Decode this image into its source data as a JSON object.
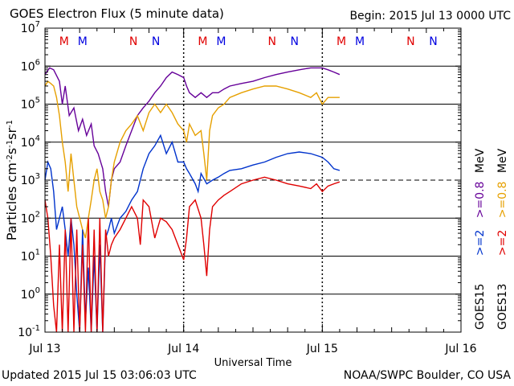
{
  "chart_data": {
    "type": "line",
    "title": "GOES Electron Flux (5 minute data)",
    "begin": "Begin: 2015 Jul 13 0000 UTC",
    "xlabel": "Universal Time",
    "ylabel": "Particles cm-2s-1sr-1",
    "x_unit": "hours since Jul 13 0000 UTC",
    "xlim": [
      0,
      72
    ],
    "ylim": [
      0.1,
      10000000
    ],
    "yscale": "log",
    "x_tick_labels": [
      {
        "x": 0,
        "label": "Jul 13"
      },
      {
        "x": 24,
        "label": "Jul 14"
      },
      {
        "x": 48,
        "label": "Jul 15"
      },
      {
        "x": 72,
        "label": "Jul 16"
      }
    ],
    "y_tick_exponents": [
      -1,
      0,
      1,
      2,
      3,
      4,
      5,
      6,
      7
    ],
    "threshold_line": 1000,
    "markers": [
      {
        "x": 3.3,
        "label": "M",
        "color": "#e00000"
      },
      {
        "x": 6.5,
        "label": "M",
        "color": "#0000e0"
      },
      {
        "x": 15.3,
        "label": "N",
        "color": "#e00000"
      },
      {
        "x": 19.2,
        "label": "N",
        "color": "#0000e0"
      },
      {
        "x": 27.3,
        "label": "M",
        "color": "#e00000"
      },
      {
        "x": 30.5,
        "label": "M",
        "color": "#0000e0"
      },
      {
        "x": 39.3,
        "label": "N",
        "color": "#e00000"
      },
      {
        "x": 43.2,
        "label": "N",
        "color": "#0000e0"
      },
      {
        "x": 51.3,
        "label": "M",
        "color": "#e00000"
      },
      {
        "x": 54.5,
        "label": "M",
        "color": "#0000e0"
      },
      {
        "x": 63.3,
        "label": "N",
        "color": "#e00000"
      },
      {
        "x": 67.2,
        "label": "N",
        "color": "#0000e0"
      }
    ],
    "legend": {
      "left": {
        "sat": "GOES15",
        "e2": ">=2",
        "e08": ">=0.8",
        "unit": "MeV"
      },
      "right": {
        "sat": "GOES13",
        "e2": ">=2",
        "e08": ">=0.8",
        "unit": "MeV"
      }
    },
    "series": [
      {
        "name": "GOES15 >=0.8 MeV",
        "color": "#660099",
        "points": [
          [
            0,
            600000
          ],
          [
            0.8,
            900000
          ],
          [
            1.5,
            800000
          ],
          [
            2.5,
            400000
          ],
          [
            3,
            100000
          ],
          [
            3.5,
            300000
          ],
          [
            4.2,
            50000
          ],
          [
            5,
            80000
          ],
          [
            5.8,
            20000
          ],
          [
            6.5,
            40000
          ],
          [
            7.2,
            15000
          ],
          [
            8,
            30000
          ],
          [
            8.5,
            8000
          ],
          [
            9.2,
            5000
          ],
          [
            10,
            2000
          ],
          [
            10.5,
            500
          ],
          [
            11,
            200
          ],
          [
            11.5,
            1000
          ],
          [
            12,
            2000
          ],
          [
            13,
            3000
          ],
          [
            14,
            8000
          ],
          [
            15,
            20000
          ],
          [
            16,
            50000
          ],
          [
            17,
            80000
          ],
          [
            18,
            120000
          ],
          [
            19,
            200000
          ],
          [
            20,
            300000
          ],
          [
            21,
            500000
          ],
          [
            22,
            700000
          ],
          [
            23,
            600000
          ],
          [
            24,
            500000
          ],
          [
            24.5,
            300000
          ],
          [
            25,
            200000
          ],
          [
            26,
            150000
          ],
          [
            27,
            200000
          ],
          [
            28,
            150000
          ],
          [
            29,
            200000
          ],
          [
            30,
            200000
          ],
          [
            31,
            250000
          ],
          [
            32,
            300000
          ],
          [
            34,
            350000
          ],
          [
            36,
            400000
          ],
          [
            38,
            500000
          ],
          [
            40,
            600000
          ],
          [
            42,
            700000
          ],
          [
            44,
            800000
          ],
          [
            46,
            900000
          ],
          [
            48,
            900000
          ],
          [
            49,
            800000
          ],
          [
            50,
            700000
          ],
          [
            51,
            600000
          ]
        ]
      },
      {
        "name": "GOES13 >=0.8 MeV",
        "color": "#e6a000",
        "points": [
          [
            0,
            300000
          ],
          [
            0.5,
            400000
          ],
          [
            1,
            350000
          ],
          [
            1.5,
            300000
          ],
          [
            2,
            150000
          ],
          [
            2.5,
            50000
          ],
          [
            3,
            10000
          ],
          [
            3.5,
            3000
          ],
          [
            4,
            500
          ],
          [
            4.5,
            5000
          ],
          [
            5,
            1000
          ],
          [
            5.5,
            200
          ],
          [
            6,
            100
          ],
          [
            6.5,
            50
          ],
          [
            7,
            30
          ],
          [
            7.5,
            100
          ],
          [
            8,
            300
          ],
          [
            8.5,
            1000
          ],
          [
            9,
            2000
          ],
          [
            9.5,
            500
          ],
          [
            10,
            300
          ],
          [
            10.5,
            100
          ],
          [
            11,
            200
          ],
          [
            11.5,
            1000
          ],
          [
            12,
            3000
          ],
          [
            13,
            10000
          ],
          [
            14,
            20000
          ],
          [
            15,
            30000
          ],
          [
            16,
            50000
          ],
          [
            17,
            20000
          ],
          [
            18,
            60000
          ],
          [
            19,
            100000
          ],
          [
            20,
            60000
          ],
          [
            21,
            100000
          ],
          [
            22,
            60000
          ],
          [
            23,
            30000
          ],
          [
            24,
            20000
          ],
          [
            24.5,
            10000
          ],
          [
            25,
            30000
          ],
          [
            26,
            15000
          ],
          [
            27,
            20000
          ],
          [
            27.5,
            5000
          ],
          [
            28,
            1000
          ],
          [
            28.5,
            20000
          ],
          [
            29,
            50000
          ],
          [
            30,
            80000
          ],
          [
            31,
            100000
          ],
          [
            32,
            150000
          ],
          [
            34,
            200000
          ],
          [
            36,
            250000
          ],
          [
            38,
            300000
          ],
          [
            40,
            300000
          ],
          [
            42,
            250000
          ],
          [
            44,
            200000
          ],
          [
            46,
            150000
          ],
          [
            47,
            200000
          ],
          [
            48,
            100000
          ],
          [
            49,
            150000
          ],
          [
            50,
            150000
          ],
          [
            51,
            150000
          ]
        ]
      },
      {
        "name": "GOES15 >=2 MeV",
        "color": "#0033cc",
        "points": [
          [
            0,
            1000
          ],
          [
            0.5,
            3000
          ],
          [
            1,
            2000
          ],
          [
            1.5,
            500
          ],
          [
            2,
            50
          ],
          [
            2.5,
            100
          ],
          [
            3,
            200
          ],
          [
            3.5,
            50
          ],
          [
            4,
            10
          ],
          [
            4.5,
            100
          ],
          [
            5,
            20
          ],
          [
            5.5,
            1
          ],
          [
            6,
            0.1
          ],
          [
            6.5,
            50
          ],
          [
            7,
            0.2
          ],
          [
            7.5,
            5
          ],
          [
            8,
            0.1
          ],
          [
            8.5,
            10
          ],
          [
            9,
            0.1
          ],
          [
            9.5,
            20
          ],
          [
            10,
            0.1
          ],
          [
            10.5,
            30
          ],
          [
            11,
            50
          ],
          [
            11.5,
            100
          ],
          [
            12,
            40
          ],
          [
            13,
            100
          ],
          [
            14,
            150
          ],
          [
            15,
            300
          ],
          [
            16,
            500
          ],
          [
            17,
            2000
          ],
          [
            18,
            5000
          ],
          [
            19,
            8000
          ],
          [
            20,
            15000
          ],
          [
            21,
            5000
          ],
          [
            22,
            10000
          ],
          [
            23,
            3000
          ],
          [
            24,
            3000
          ],
          [
            24.5,
            2000
          ],
          [
            25,
            1500
          ],
          [
            26,
            800
          ],
          [
            26.5,
            500
          ],
          [
            27,
            1500
          ],
          [
            28,
            800
          ],
          [
            29,
            1000
          ],
          [
            30,
            1200
          ],
          [
            31,
            1500
          ],
          [
            32,
            1800
          ],
          [
            34,
            2000
          ],
          [
            36,
            2500
          ],
          [
            38,
            3000
          ],
          [
            40,
            4000
          ],
          [
            42,
            5000
          ],
          [
            44,
            5500
          ],
          [
            46,
            5000
          ],
          [
            48,
            4000
          ],
          [
            49,
            3000
          ],
          [
            50,
            2000
          ],
          [
            51,
            1800
          ]
        ]
      },
      {
        "name": "GOES13 >=2 MeV",
        "color": "#e00000",
        "points": [
          [
            0,
            300
          ],
          [
            0.5,
            100
          ],
          [
            1,
            10
          ],
          [
            1.5,
            0.5
          ],
          [
            2,
            0.1
          ],
          [
            2.5,
            20
          ],
          [
            3,
            0.1
          ],
          [
            3.5,
            50
          ],
          [
            4,
            0.1
          ],
          [
            4.5,
            100
          ],
          [
            5,
            0.1
          ],
          [
            5.5,
            50
          ],
          [
            6,
            0.1
          ],
          [
            6.5,
            20
          ],
          [
            7,
            0.1
          ],
          [
            7.5,
            100
          ],
          [
            8,
            0.1
          ],
          [
            8.5,
            50
          ],
          [
            9,
            0.1
          ],
          [
            9.5,
            100
          ],
          [
            10,
            0.1
          ],
          [
            10.5,
            50
          ],
          [
            11,
            10
          ],
          [
            11.5,
            20
          ],
          [
            12,
            30
          ],
          [
            13,
            50
          ],
          [
            14,
            100
          ],
          [
            15,
            200
          ],
          [
            16,
            100
          ],
          [
            16.5,
            20
          ],
          [
            17,
            300
          ],
          [
            18,
            200
          ],
          [
            19,
            30
          ],
          [
            20,
            100
          ],
          [
            21,
            80
          ],
          [
            22,
            50
          ],
          [
            23,
            20
          ],
          [
            24,
            8
          ],
          [
            24.5,
            30
          ],
          [
            25,
            200
          ],
          [
            26,
            300
          ],
          [
            27,
            100
          ],
          [
            27.5,
            20
          ],
          [
            28,
            3
          ],
          [
            28.5,
            50
          ],
          [
            29,
            200
          ],
          [
            30,
            300
          ],
          [
            31,
            400
          ],
          [
            32,
            500
          ],
          [
            34,
            800
          ],
          [
            36,
            1000
          ],
          [
            38,
            1200
          ],
          [
            40,
            1000
          ],
          [
            42,
            800
          ],
          [
            44,
            700
          ],
          [
            46,
            600
          ],
          [
            47,
            800
          ],
          [
            48,
            500
          ],
          [
            49,
            700
          ],
          [
            50,
            800
          ],
          [
            51,
            900
          ]
        ]
      }
    ]
  },
  "footer": {
    "updated": "Updated 2015 Jul 15 03:06:03 UTC",
    "source": "NOAA/SWPC Boulder, CO USA"
  }
}
